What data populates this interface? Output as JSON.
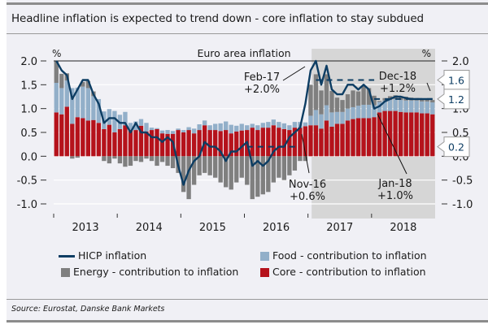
{
  "page": {
    "title": "Headline inflation is expected to trend down - core inflation to stay subdued",
    "source": "Source: Eurostat, Danske Bank Markets"
  },
  "chart_data": {
    "type": "bar",
    "subtype": "stacked bar with line overlay",
    "title": "Euro area inflation",
    "ylabel_left": "%",
    "ylabel_right": "%",
    "ylim": [
      -1.0,
      2.0
    ],
    "yticks": [
      "2.0",
      "1.5",
      "1.0",
      "0.5",
      "0.0",
      "-0.5",
      "-1.0"
    ],
    "ytick_values": [
      2.0,
      1.5,
      1.0,
      0.5,
      0.0,
      -0.5,
      -1.0
    ],
    "xticks": [
      "2013",
      "2014",
      "2015",
      "2016",
      "2017",
      "2018"
    ],
    "grid": true,
    "forecast_shading_start": "Feb-17",
    "colors": {
      "hicp": "#0d3d63",
      "food": "#92afc9",
      "energy": "#7f7f7f",
      "core": "#b5121b",
      "forecast_bg": "#d6d6d6",
      "plot_bg": "#f0f0f5"
    },
    "months": [
      "Jan-13",
      "Feb-13",
      "Mar-13",
      "Apr-13",
      "May-13",
      "Jun-13",
      "Jul-13",
      "Aug-13",
      "Sep-13",
      "Oct-13",
      "Nov-13",
      "Dec-13",
      "Jan-14",
      "Feb-14",
      "Mar-14",
      "Apr-14",
      "May-14",
      "Jun-14",
      "Jul-14",
      "Aug-14",
      "Sep-14",
      "Oct-14",
      "Nov-14",
      "Dec-14",
      "Jan-15",
      "Feb-15",
      "Mar-15",
      "Apr-15",
      "May-15",
      "Jun-15",
      "Jul-15",
      "Aug-15",
      "Sep-15",
      "Oct-15",
      "Nov-15",
      "Dec-15",
      "Jan-16",
      "Feb-16",
      "Mar-16",
      "Apr-16",
      "May-16",
      "Jun-16",
      "Jul-16",
      "Aug-16",
      "Sep-16",
      "Oct-16",
      "Nov-16",
      "Dec-16",
      "Jan-17",
      "Feb-17",
      "Mar-17",
      "Apr-17",
      "May-17",
      "Jun-17",
      "Jul-17",
      "Aug-17",
      "Sep-17",
      "Oct-17",
      "Nov-17",
      "Dec-17",
      "Jan-18",
      "Feb-18",
      "Mar-18",
      "Apr-18",
      "May-18",
      "Jun-18",
      "Jul-18",
      "Aug-18",
      "Sep-18",
      "Oct-18",
      "Nov-18",
      "Dec-18"
    ],
    "series": [
      {
        "name": "Core - contribution to inflation",
        "values": [
          0.92,
          0.88,
          1.04,
          0.68,
          0.82,
          0.8,
          0.75,
          0.76,
          0.7,
          0.57,
          0.66,
          0.5,
          0.57,
          0.65,
          0.55,
          0.55,
          0.64,
          0.52,
          0.55,
          0.57,
          0.48,
          0.47,
          0.47,
          0.55,
          0.5,
          0.55,
          0.48,
          0.55,
          0.65,
          0.55,
          0.55,
          0.53,
          0.55,
          0.48,
          0.52,
          0.54,
          0.55,
          0.6,
          0.55,
          0.6,
          0.6,
          0.65,
          0.6,
          0.57,
          0.55,
          0.6,
          0.6,
          0.63,
          0.65,
          0.65,
          0.58,
          0.75,
          0.62,
          0.68,
          0.68,
          0.75,
          0.78,
          0.8,
          0.8,
          0.8,
          0.82,
          0.92,
          0.95,
          0.95,
          0.95,
          0.93,
          0.92,
          0.92,
          0.92,
          0.9,
          0.9,
          0.88
        ]
      },
      {
        "name": "Food - contribution to inflation",
        "values": [
          0.62,
          0.55,
          0.55,
          0.75,
          0.62,
          0.66,
          0.68,
          0.5,
          0.5,
          0.37,
          0.33,
          0.45,
          0.3,
          0.28,
          0.15,
          0.18,
          0.14,
          0.18,
          0.05,
          0.02,
          0.06,
          0.08,
          0.06,
          0.03,
          0.05,
          0.06,
          0.1,
          0.12,
          0.1,
          0.1,
          0.13,
          0.16,
          0.18,
          0.18,
          0.12,
          0.14,
          0.1,
          0.08,
          0.1,
          0.1,
          0.12,
          0.12,
          0.12,
          0.12,
          0.1,
          0.12,
          0.12,
          0.08,
          0.2,
          0.32,
          0.3,
          0.32,
          0.3,
          0.25,
          0.25,
          0.25,
          0.25,
          0.26,
          0.28,
          0.28,
          0.25,
          0.22,
          0.22,
          0.23,
          0.25,
          0.25,
          0.25,
          0.25,
          0.25,
          0.25,
          0.25,
          0.25
        ]
      },
      {
        "name": "Energy - contribution to inflation",
        "values": [
          0.45,
          0.3,
          0.15,
          -0.05,
          -0.03,
          0.1,
          0.15,
          0.1,
          0.0,
          -0.1,
          -0.15,
          -0.05,
          -0.15,
          -0.22,
          -0.2,
          -0.1,
          -0.12,
          -0.05,
          -0.1,
          -0.2,
          -0.12,
          -0.2,
          -0.25,
          -0.35,
          -0.75,
          -0.9,
          -0.6,
          -0.4,
          -0.35,
          -0.4,
          -0.45,
          -0.55,
          -0.65,
          -0.7,
          -0.55,
          -0.45,
          -0.6,
          -0.9,
          -0.85,
          -0.8,
          -0.75,
          -0.55,
          -0.45,
          -0.5,
          -0.4,
          -0.3,
          -0.1,
          -0.1,
          0.65,
          0.75,
          0.5,
          0.65,
          0.45,
          0.3,
          0.25,
          0.3,
          0.35,
          0.3,
          0.4,
          0.35,
          0.2,
          0.02,
          0.05,
          0.08,
          0.08,
          0.08,
          0.08,
          0.06,
          0.05,
          0.05,
          0.05,
          0.05
        ]
      },
      {
        "name": "HICP inflation",
        "type": "line",
        "values": [
          2.0,
          1.8,
          1.7,
          1.2,
          1.4,
          1.6,
          1.6,
          1.3,
          1.1,
          0.7,
          0.8,
          0.8,
          0.7,
          0.7,
          0.5,
          0.7,
          0.5,
          0.5,
          0.4,
          0.4,
          0.3,
          0.4,
          0.3,
          -0.2,
          -0.6,
          -0.3,
          -0.1,
          0.0,
          0.3,
          0.2,
          0.2,
          0.1,
          -0.1,
          0.1,
          0.1,
          0.2,
          0.3,
          -0.2,
          -0.1,
          -0.2,
          -0.1,
          0.1,
          0.2,
          0.2,
          0.4,
          0.5,
          0.6,
          1.1,
          1.8,
          2.0,
          1.5,
          1.9,
          1.4,
          1.3,
          1.3,
          1.5,
          1.5,
          1.4,
          1.5,
          1.4,
          1.0,
          1.05,
          1.15,
          1.2,
          1.25,
          1.25,
          1.22,
          1.2,
          1.2,
          1.2,
          1.2,
          1.2
        ]
      }
    ],
    "reference_lines": [
      {
        "label": "1.6",
        "value": 1.6,
        "style": "dashed",
        "from": "Feb-17",
        "to": "Jan-18"
      },
      {
        "label": "1.2",
        "value": 1.2,
        "style": "dashed",
        "from": "Jan-18",
        "to": "Dec-18"
      },
      {
        "label": "0.2",
        "value": 0.2,
        "style": "dashed",
        "from": "Jan-16",
        "to": "Nov-16"
      }
    ],
    "annotations": [
      {
        "text": [
          "Feb-17",
          "+2.0%"
        ],
        "points_to": "Feb-17"
      },
      {
        "text": [
          "Nov-16",
          "+0.6%"
        ],
        "points_to": "Nov-16"
      },
      {
        "text": [
          "Dec-18",
          "+1.2%"
        ],
        "points_to": "Dec-18"
      },
      {
        "text": [
          "Jan-18",
          "+1.0%"
        ],
        "points_to": "Jan-18"
      }
    ],
    "callouts": [
      "1.6",
      "1.2",
      "0.2"
    ],
    "legend": [
      {
        "label": "HICP inflation",
        "kind": "line",
        "color_key": "hicp"
      },
      {
        "label": "Food - contribution to inflation",
        "kind": "box",
        "color_key": "food"
      },
      {
        "label": "Energy - contribution to inflation",
        "kind": "box",
        "color_key": "energy"
      },
      {
        "label": "Core - contribution to inflation",
        "kind": "box",
        "color_key": "core"
      }
    ],
    "legend_position": "bottom"
  }
}
